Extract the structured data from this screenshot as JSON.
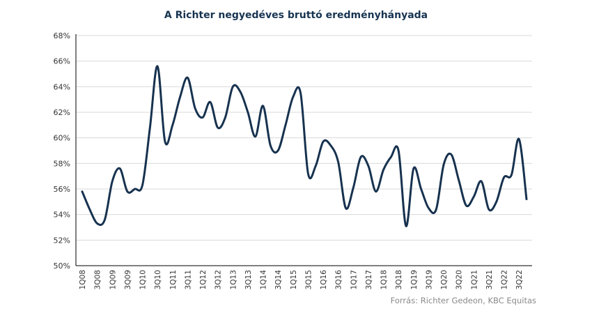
{
  "chart_data": {
    "type": "line",
    "title": "A Richter negyedéves bruttó eredményhányada",
    "source": "Forrás: Richter Gedeon, KBC Equitas",
    "xlabel": "",
    "ylabel": "",
    "ylim": [
      50,
      68
    ],
    "yticks": [
      "50%",
      "52%",
      "54%",
      "56%",
      "58%",
      "60%",
      "62%",
      "64%",
      "66%",
      "68%"
    ],
    "grid": true,
    "line_color": "#17324f",
    "categories": [
      "1Q08",
      "2Q08",
      "3Q08",
      "4Q08",
      "1Q09",
      "2Q09",
      "3Q09",
      "4Q09",
      "1Q10",
      "2Q10",
      "3Q10",
      "4Q10",
      "1Q11",
      "2Q11",
      "3Q11",
      "4Q11",
      "1Q12",
      "2Q12",
      "3Q12",
      "4Q12",
      "1Q13",
      "2Q13",
      "3Q13",
      "4Q13",
      "1Q14",
      "2Q14",
      "3Q14",
      "4Q14",
      "1Q15",
      "2Q15",
      "3Q15",
      "4Q15",
      "1Q16",
      "2Q16",
      "3Q16",
      "4Q16",
      "1Q17",
      "2Q17",
      "3Q17",
      "4Q17",
      "1Q18",
      "2Q18",
      "3Q18",
      "4Q18",
      "1Q19",
      "2Q19",
      "3Q19",
      "4Q19",
      "1Q20",
      "2Q20",
      "3Q20",
      "4Q20",
      "1Q21",
      "2Q21",
      "3Q21",
      "4Q21",
      "1Q22",
      "2Q22",
      "3Q22",
      "4Q22"
    ],
    "tick_labels": [
      "1Q08",
      "3Q08",
      "1Q09",
      "3Q09",
      "1Q10",
      "3Q10",
      "1Q11",
      "3Q11",
      "1Q12",
      "3Q12",
      "1Q13",
      "3Q13",
      "1Q14",
      "3Q14",
      "1Q15",
      "3Q15",
      "1Q16",
      "3Q16",
      "1Q17",
      "3Q17",
      "1Q18",
      "3Q18",
      "1Q19",
      "3Q19",
      "1Q20",
      "3Q20",
      "1Q21",
      "3Q21",
      "1Q22",
      "3Q22"
    ],
    "series": [
      {
        "values": [
          55.8,
          54.4,
          53.3,
          53.6,
          56.6,
          57.6,
          55.8,
          56.0,
          56.3,
          60.8,
          65.6,
          59.7,
          61.0,
          63.2,
          64.7,
          62.3,
          61.6,
          62.8,
          60.8,
          61.6,
          64.0,
          63.6,
          62.0,
          60.1,
          62.5,
          59.4,
          59.0,
          61.0,
          63.2,
          63.5,
          57.2,
          57.8,
          59.7,
          59.4,
          58.1,
          54.5,
          56.1,
          58.5,
          57.8,
          55.8,
          57.5,
          58.5,
          59.0,
          53.1,
          57.6,
          56.0,
          54.5,
          54.4,
          57.9,
          58.7,
          56.7,
          54.7,
          55.4,
          56.6,
          54.4,
          55.0,
          56.9,
          57.1,
          59.9,
          55.2
        ]
      }
    ]
  }
}
